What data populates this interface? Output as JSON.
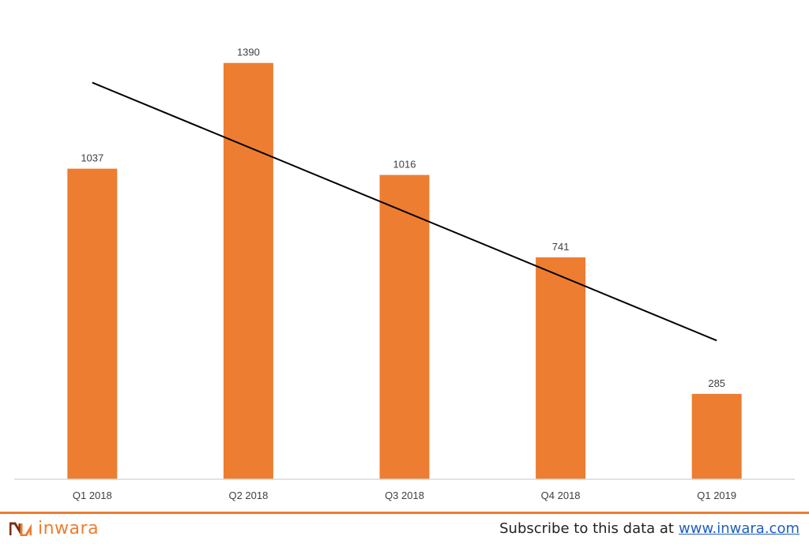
{
  "chart_data": {
    "type": "bar",
    "categories": [
      "Q1 2018",
      "Q2 2018",
      "Q3 2018",
      "Q4 2018",
      "Q1 2019"
    ],
    "values": [
      1037,
      1390,
      1016,
      741,
      285
    ],
    "data_labels": [
      "1037",
      "1390",
      "1016",
      "741",
      "285"
    ],
    "ylim": [
      0,
      1500
    ],
    "grid": false,
    "trendline": {
      "type": "linear",
      "color": "#000000"
    },
    "bar_color": "#ED7D31",
    "title": "",
    "xlabel": "",
    "ylabel": ""
  },
  "footer": {
    "brand": "inwara",
    "subscribe_text": "Subscribe to this data at",
    "subscribe_link": "www.inwara.com",
    "accent_color": "#ED7D31",
    "link_color": "#1F5FBF"
  }
}
